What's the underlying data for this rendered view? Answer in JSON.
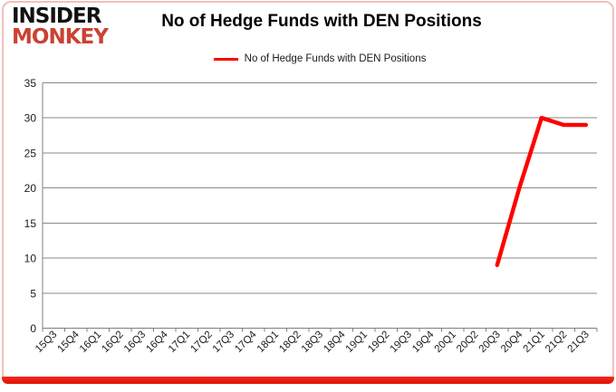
{
  "logo": {
    "line1": "INSIDER",
    "line2": "MONKEY"
  },
  "header": {
    "title": "No of Hedge Funds with DEN Positions"
  },
  "legend": {
    "label": "No of Hedge Funds with DEN Positions",
    "swatch_color": "#ff0000"
  },
  "colors": {
    "series_red": "#ff0000",
    "logo_red": "#cb4233",
    "border_pink": "#f1bfb9",
    "border_bottom_red": "#e82114",
    "gridline_gray": "#898989",
    "axis_gray": "#808080",
    "text_black": "#1a1a1a"
  },
  "chart_data": {
    "type": "line",
    "title": "No of Hedge Funds with DEN Positions",
    "categories": [
      "15Q3",
      "15Q4",
      "16Q1",
      "16Q2",
      "16Q3",
      "16Q4",
      "17Q1",
      "17Q2",
      "17Q3",
      "17Q4",
      "18Q1",
      "18Q2",
      "18Q3",
      "18Q4",
      "19Q1",
      "19Q2",
      "19Q3",
      "19Q4",
      "20Q1",
      "20Q2",
      "20Q3",
      "20Q4",
      "21Q1",
      "21Q2",
      "21Q3"
    ],
    "series": [
      {
        "name": "No of Hedge Funds with DEN Positions",
        "color": "#ff0000",
        "values": [
          null,
          null,
          null,
          null,
          null,
          null,
          null,
          null,
          null,
          null,
          null,
          null,
          null,
          null,
          null,
          null,
          null,
          null,
          null,
          null,
          9,
          20,
          30,
          29,
          29
        ]
      }
    ],
    "ylim": [
      0,
      35
    ],
    "ytick_step": 5,
    "grid": true,
    "legend_position": "top",
    "xlabel": "",
    "ylabel": ""
  }
}
